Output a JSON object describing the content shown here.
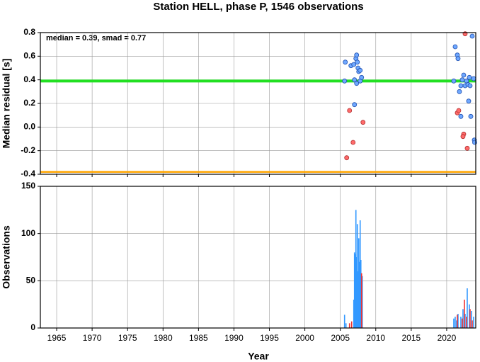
{
  "chart_data": [
    {
      "type": "scatter",
      "title": "Station HELL, phase P, 1546 observations",
      "annotation": "median = 0.39, smad = 0.77",
      "y_label": "Median residual [s]",
      "xlim": [
        1962.7,
        2024.1
      ],
      "xticks": [
        1965,
        1970,
        1975,
        1980,
        1985,
        1990,
        1995,
        2000,
        2005,
        2010,
        2015,
        2020
      ],
      "ylim": [
        -0.4,
        0.8
      ],
      "yticks": [
        {
          "value": -0.4,
          "label": "-0.4"
        },
        {
          "value": -0.2,
          "label": "-0.2"
        },
        {
          "value": 0,
          "label": "0.0"
        },
        0.2,
        0.4,
        0.6,
        0.8
      ],
      "grid": true,
      "hlines": [
        {
          "value": 0.39,
          "color": "#22e022"
        },
        {
          "value": -0.38,
          "color": "#ffa500"
        }
      ],
      "series": [
        {
          "color": "#6fa8ff",
          "edge": "#2050b0",
          "x": [
            2005.6,
            2005.7,
            2006.5,
            2006.9,
            2007.0,
            2007.2,
            2007.3,
            2007.4,
            2007.5,
            2007.6,
            2007.3,
            2007.8,
            2008.0,
            2007.0,
            2007.8,
            2021.2,
            2021.5,
            2021.6,
            2021.0,
            2021.8,
            2022.0,
            2022.2,
            2022.4,
            2022.6,
            2022.8,
            2023.0,
            2023.2,
            2023.3,
            2023.1,
            2023.4,
            2022.0,
            2023.6,
            2023.8,
            2023.9,
            2023.95
          ],
          "values": [
            0.39,
            0.55,
            0.52,
            0.53,
            0.4,
            0.58,
            0.61,
            0.55,
            0.5,
            0.47,
            0.37,
            0.39,
            0.42,
            0.19,
            0.48,
            0.68,
            0.61,
            0.58,
            0.39,
            0.3,
            0.35,
            0.4,
            0.44,
            0.35,
            0.39,
            0.36,
            0.42,
            0.35,
            0.22,
            0.09,
            0.09,
            0.77,
            0.41,
            -0.11,
            -0.13
          ]
        },
        {
          "color": "#ff6b6b",
          "edge": "#b03030",
          "x": [
            2006.3,
            2006.8,
            2005.9,
            2008.2,
            2021.5,
            2022.4,
            2022.3,
            2022.9,
            2022.6,
            2021.7
          ],
          "values": [
            0.14,
            -0.13,
            -0.26,
            0.04,
            0.12,
            -0.06,
            -0.08,
            -0.18,
            0.79,
            0.14
          ]
        }
      ]
    },
    {
      "type": "bar",
      "y_label": "Observations",
      "x_label": "Year",
      "xlim": [
        1962.7,
        2024.1
      ],
      "xticks": [
        1965,
        1970,
        1975,
        1980,
        1985,
        1990,
        1995,
        2000,
        2005,
        2010,
        2015,
        2020
      ],
      "ylim": [
        0,
        150
      ],
      "yticks": [
        0,
        50,
        100,
        150
      ],
      "grid": true,
      "series": [
        {
          "color": "#3399ff",
          "x": [
            2005.6,
            2005.8,
            2006.9,
            2007.0,
            2007.1,
            2007.2,
            2007.3,
            2007.4,
            2007.5,
            2007.6,
            2007.7,
            2007.8,
            2007.9,
            2008.1,
            2021.0,
            2021.2,
            2021.4,
            2021.6,
            2022.0,
            2022.3,
            2022.6,
            2022.9,
            2023.2,
            2023.5,
            2023.8
          ],
          "values": [
            14,
            5,
            30,
            80,
            78,
            125,
            75,
            110,
            60,
            95,
            70,
            114,
            72,
            55,
            10,
            12,
            8,
            15,
            12,
            20,
            15,
            42,
            25,
            18,
            12
          ]
        },
        {
          "color": "#ee3333",
          "x": [
            2006.3,
            2006.6,
            2008.0,
            2021.5,
            2022.2,
            2022.5,
            2022.8,
            2023.3,
            2023.6
          ],
          "values": [
            5,
            7,
            58,
            14,
            10,
            30,
            12,
            20,
            8
          ]
        }
      ]
    }
  ]
}
